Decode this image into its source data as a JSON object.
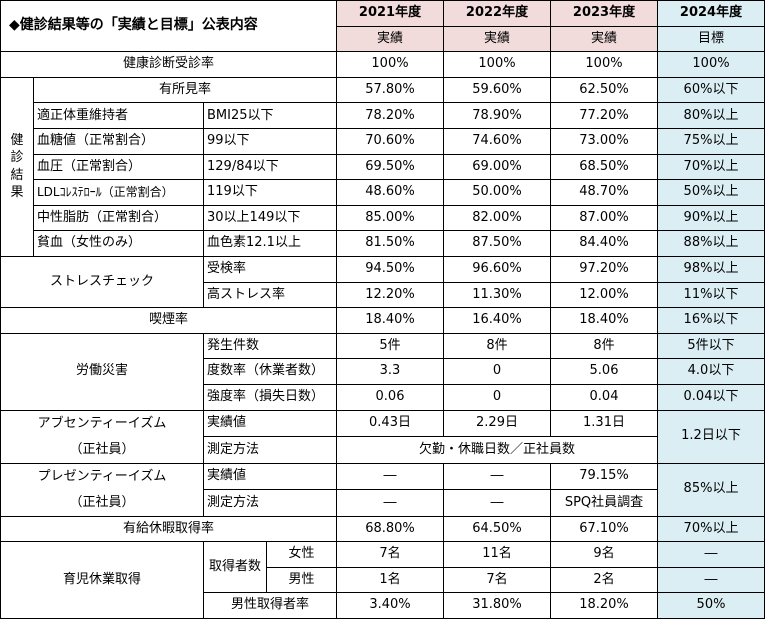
{
  "header": {
    "title_icon": "diamond-icon",
    "title_mark": "◆",
    "title": "健診結果等の「実績と目標」公表内容",
    "years": [
      "2021年度",
      "2022年度",
      "2023年度",
      "2024年度"
    ],
    "kinds": [
      "実績",
      "実績",
      "実績",
      "目標"
    ]
  },
  "colors": {
    "header_pink": "#f2dcdb",
    "target_blue": "#dbeef3"
  },
  "checkup_rate": {
    "label": "健康診断受診率",
    "values": [
      "100%",
      "100%",
      "100%",
      "100%"
    ]
  },
  "results": {
    "group_label": [
      "健",
      "診",
      "結",
      "果"
    ],
    "yushoken": {
      "label": "有所見率",
      "values": [
        "57.80%",
        "59.60%",
        "62.50%",
        "60%以下"
      ]
    },
    "rows": [
      {
        "label": "適正体重維持者",
        "criteria": "BMI25以下",
        "values": [
          "78.20%",
          "78.90%",
          "77.20%",
          "80%以上"
        ]
      },
      {
        "label": "血糖値（正常割合）",
        "criteria": "99以下",
        "values": [
          "70.60%",
          "74.60%",
          "73.00%",
          "75%以上"
        ]
      },
      {
        "label": "血圧（正常割合）",
        "criteria": "129/84以下",
        "values": [
          "69.50%",
          "69.00%",
          "68.50%",
          "70%以上"
        ]
      },
      {
        "label": "LDLｺﾚｽﾃﾛｰﾙ（正常割合）",
        "criteria": "119以下",
        "values": [
          "48.60%",
          "50.00%",
          "48.70%",
          "50%以上"
        ]
      },
      {
        "label": "中性脂肪（正常割合）",
        "criteria": "30以上149以下",
        "values": [
          "85.00%",
          "82.00%",
          "87.00%",
          "90%以上"
        ]
      },
      {
        "label": "貧血（女性のみ）",
        "criteria": "血色素12.1以上",
        "values": [
          "81.50%",
          "87.50%",
          "84.40%",
          "88%以上"
        ]
      }
    ]
  },
  "stress": {
    "label": "ストレスチェック",
    "rows": [
      {
        "label": "受検率",
        "values": [
          "94.50%",
          "96.60%",
          "97.20%",
          "98%以上"
        ]
      },
      {
        "label": "高ストレス率",
        "values": [
          "12.20%",
          "11.30%",
          "12.00%",
          "11%以下"
        ]
      }
    ]
  },
  "smoking": {
    "label": "喫煙率",
    "values": [
      "18.40%",
      "16.40%",
      "18.40%",
      "16%以下"
    ]
  },
  "accidents": {
    "label": "労働災害",
    "rows": [
      {
        "label": "発生件数",
        "values": [
          "5件",
          "8件",
          "8件",
          "5件以下"
        ]
      },
      {
        "label": "度数率（休業者数）",
        "values": [
          "3.3",
          "0",
          "5.06",
          "4.0以下"
        ]
      },
      {
        "label": "強度率（損失日数）",
        "values": [
          "0.06",
          "0",
          "0.04",
          "0.04以下"
        ]
      }
    ]
  },
  "absenteeism": {
    "label": "アブセンティーイズム",
    "sub": "（正社員）",
    "actual_label": "実績値",
    "values": [
      "0.43日",
      "2.29日",
      "1.31日"
    ],
    "method_label": "測定方法",
    "method": "欠勤・休職日数／正社員数",
    "target": "1.2日以下"
  },
  "presenteeism": {
    "label": "プレゼンティーイズム",
    "sub": "（正社員）",
    "actual_label": "実績値",
    "values": [
      "―",
      "―",
      "79.15%"
    ],
    "method_label": "測定方法",
    "methods": [
      "―",
      "―",
      "SPQ社員調査"
    ],
    "target": "85%以上"
  },
  "paid_leave": {
    "label": "有給休暇取得率",
    "values": [
      "68.80%",
      "64.50%",
      "67.10%",
      "70%以上"
    ]
  },
  "childcare": {
    "label": "育児休業取得",
    "count_label": "取得者数",
    "female": {
      "label": "女性",
      "values": [
        "7名",
        "11名",
        "9名",
        "―"
      ]
    },
    "male": {
      "label": "男性",
      "values": [
        "1名",
        "7名",
        "2名",
        "―"
      ]
    },
    "male_rate": {
      "label": "男性取得者率",
      "values": [
        "3.40%",
        "31.80%",
        "18.20%",
        "50%"
      ]
    }
  }
}
